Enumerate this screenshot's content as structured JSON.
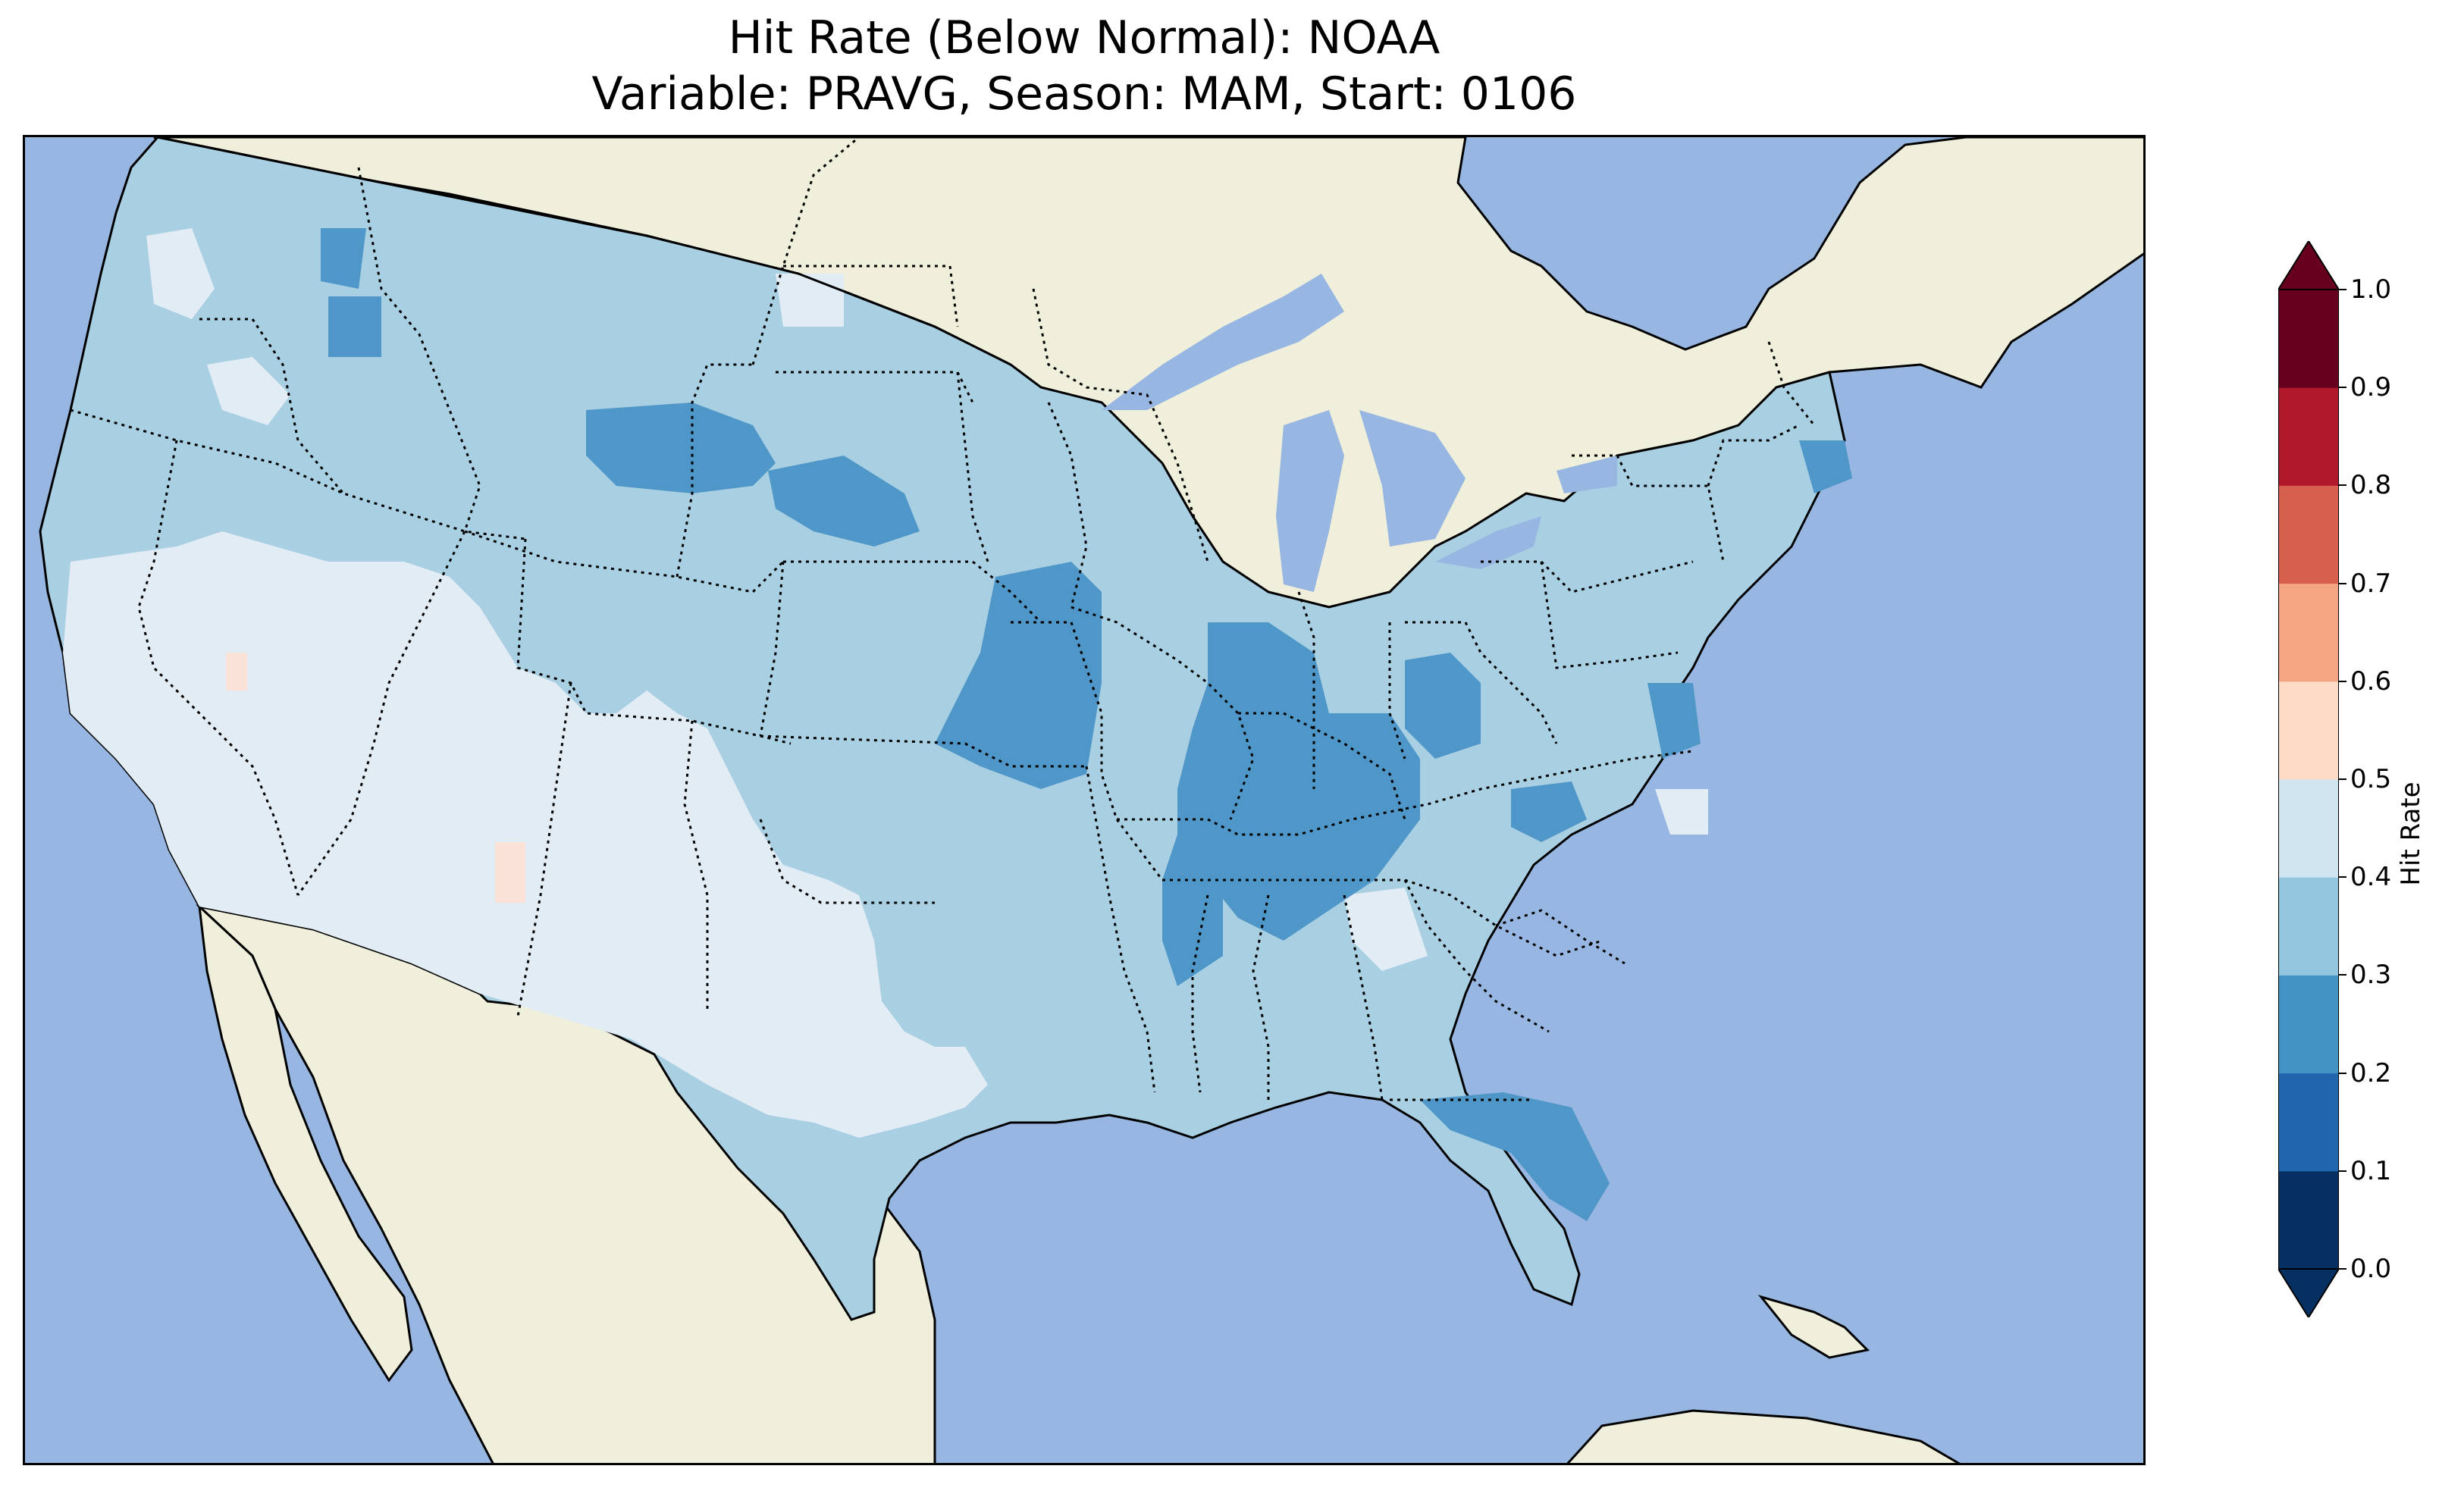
{
  "title": {
    "line1": "Hit Rate (Below Normal): NOAA",
    "line2": "Variable: PRAVG, Season: MAM, Start: 0106"
  },
  "colors": {
    "ocean": "#97b6e1",
    "land": "#efefdb",
    "border": "#000000"
  },
  "colorbar": {
    "label": "Hit Rate",
    "ticks": [
      "0.0",
      "0.1",
      "0.2",
      "0.3",
      "0.4",
      "0.5",
      "0.6",
      "0.7",
      "0.8",
      "0.9",
      "1.0"
    ],
    "bins": [
      {
        "from": 0.0,
        "to": 0.1,
        "color": "#053061"
      },
      {
        "from": 0.1,
        "to": 0.2,
        "color": "#2166ac"
      },
      {
        "from": 0.2,
        "to": 0.3,
        "color": "#4393c3"
      },
      {
        "from": 0.3,
        "to": 0.4,
        "color": "#92c5de"
      },
      {
        "from": 0.4,
        "to": 0.5,
        "color": "#d1e5f0"
      },
      {
        "from": 0.5,
        "to": 0.6,
        "color": "#fddbc7"
      },
      {
        "from": 0.6,
        "to": 0.7,
        "color": "#f4a582"
      },
      {
        "from": 0.7,
        "to": 0.8,
        "color": "#d6604d"
      },
      {
        "from": 0.8,
        "to": 0.9,
        "color": "#b2182b"
      },
      {
        "from": 0.9,
        "to": 1.0,
        "color": "#67001f"
      }
    ],
    "extend": "both"
  },
  "map_data": {
    "region": "Contiguous United States",
    "field_default": {
      "from": 0.3,
      "to": 0.4,
      "color": "#a9cfe3"
    },
    "regions": [
      {
        "name": "low-band-upper-midwest",
        "level": "0.2-0.3",
        "color": "#4f97c8"
      },
      {
        "name": "low-band-ohio-valley",
        "level": "0.2-0.3",
        "color": "#4f97c8"
      },
      {
        "name": "low-band-florida",
        "level": "0.2-0.3",
        "color": "#4f97c8"
      },
      {
        "name": "high-band-southwest",
        "level": "0.4-0.5",
        "color": "#e2ecf4"
      },
      {
        "name": "high-band-west-texas",
        "level": "0.4-0.5",
        "color": "#e2ecf4"
      },
      {
        "name": "peak-spots",
        "level": "0.5-0.6",
        "color": "#fbe2d8"
      }
    ]
  }
}
